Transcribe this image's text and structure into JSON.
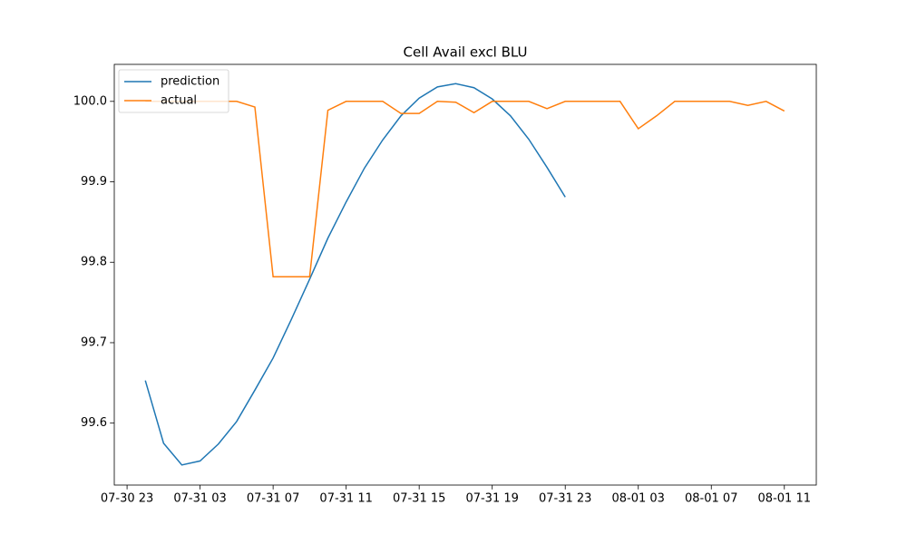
{
  "chart_data": {
    "type": "line",
    "title": "Cell Avail excl BLU",
    "x": [
      "07-31 00",
      "07-31 01",
      "07-31 02",
      "07-31 03",
      "07-31 04",
      "07-31 05",
      "07-31 06",
      "07-31 07",
      "07-31 08",
      "07-31 09",
      "07-31 10",
      "07-31 11",
      "07-31 12",
      "07-31 13",
      "07-31 14",
      "07-31 15",
      "07-31 16",
      "07-31 17",
      "07-31 18",
      "07-31 19",
      "07-31 20",
      "07-31 21",
      "07-31 22",
      "07-31 23",
      "08-01 00",
      "08-01 01",
      "08-01 02",
      "08-01 03",
      "08-01 04",
      "08-01 05",
      "08-01 06",
      "08-01 07",
      "08-01 08",
      "08-01 09",
      "08-01 10",
      "08-01 11"
    ],
    "series": [
      {
        "name": "prediction",
        "color": "#1f77b4",
        "values": [
          99.653,
          99.575,
          99.548,
          99.553,
          99.574,
          99.602,
          99.641,
          99.681,
          99.729,
          99.779,
          99.83,
          99.875,
          99.917,
          99.952,
          99.982,
          100.004,
          100.018,
          100.022,
          100.017,
          100.003,
          99.982,
          99.953,
          99.918,
          99.881,
          null,
          null,
          null,
          null,
          null,
          null,
          null,
          null,
          null,
          null,
          null,
          null
        ]
      },
      {
        "name": "actual",
        "color": "#ff7f0e",
        "values": [
          100.0,
          100.0,
          100.0,
          100.0,
          100.0,
          100.0,
          99.993,
          99.782,
          99.782,
          99.782,
          99.989,
          100.0,
          100.0,
          100.0,
          99.985,
          99.985,
          100.0,
          99.999,
          99.986,
          100.0,
          100.0,
          100.0,
          99.991,
          100.0,
          100.0,
          100.0,
          100.0,
          99.966,
          99.982,
          100.0,
          100.0,
          100.0,
          100.0,
          99.995,
          100.0,
          99.988
        ]
      }
    ],
    "xlim": [
      "07-30 22:18",
      "08-01 12:45"
    ],
    "xticks": [
      "07-30 23",
      "07-31 03",
      "07-31 07",
      "07-31 11",
      "07-31 15",
      "07-31 19",
      "07-31 23",
      "08-01 03",
      "08-01 07",
      "08-01 11"
    ],
    "ylim": [
      99.523,
      100.046
    ],
    "yticks": [
      99.6,
      99.7,
      99.8,
      99.9,
      {
        "value": 100,
        "label": "100.0"
      }
    ],
    "legend": "upper left"
  }
}
